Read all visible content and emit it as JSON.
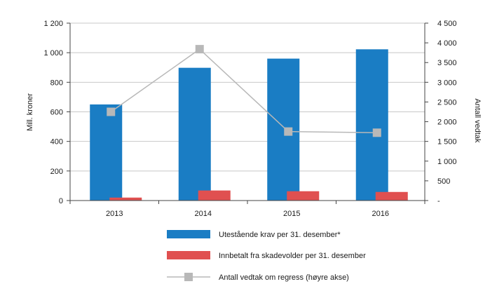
{
  "chart_data": {
    "type": "bar",
    "title": "",
    "categories": [
      "2013",
      "2014",
      "2015",
      "2016"
    ],
    "ylabel": "Mill. kroner",
    "ylabel_right": "Antall vedtak",
    "ylim": [
      0,
      1200
    ],
    "yticks": [
      "0",
      "200",
      "400",
      "600",
      "800",
      "1 000",
      "1 200"
    ],
    "ylim_right": [
      0,
      4500
    ],
    "yticks_right": [
      "-",
      "500",
      "1 000",
      "1 500",
      "2 000",
      "2 500",
      "3 000",
      "3 500",
      "4 000",
      "4 500"
    ],
    "legend_position": "bottom",
    "series": [
      {
        "name": "Utestående krav per 31. desember*",
        "type": "bar",
        "axis": "left",
        "color": "#1a7dc4",
        "values": [
          650,
          898,
          960,
          1023
        ]
      },
      {
        "name": "Innbetalt fra skadevolder per 31. desember",
        "type": "bar",
        "axis": "left",
        "color": "#e05050",
        "values": [
          20,
          68,
          63,
          58
        ]
      },
      {
        "name": "Antall vedtak om regress (høyre akse)",
        "type": "line",
        "axis": "right",
        "color": "#b8b8b8",
        "values": [
          2250,
          3840,
          1750,
          1720
        ]
      }
    ]
  }
}
